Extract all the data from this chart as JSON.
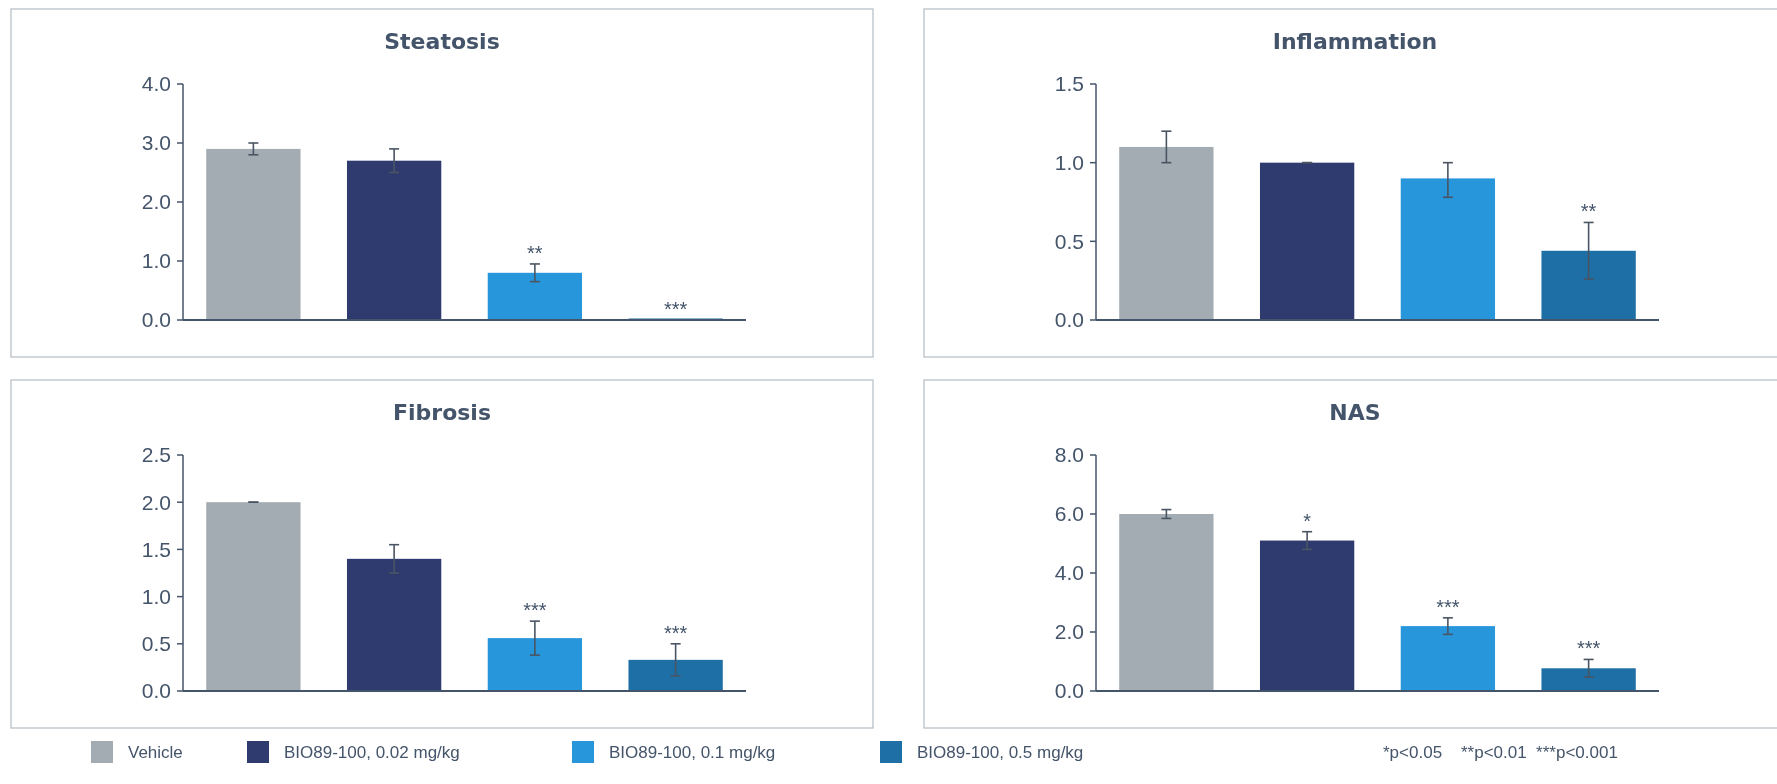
{
  "chart_data": [
    {
      "type": "bar",
      "title": "Steatosis",
      "categories": [
        null
      ],
      "ylim": [
        0,
        4
      ],
      "yticks": [
        {
          "value": 0,
          "label": "0.0"
        },
        {
          "value": 1,
          "label": "1.0"
        },
        {
          "value": 2,
          "label": "2.0"
        },
        {
          "value": 3,
          "label": "3.0"
        },
        {
          "value": 4,
          "label": "4.0"
        }
      ],
      "series": [
        {
          "color": "#a2acb2",
          "values": [
            2.9
          ],
          "errors": [
            0.1
          ],
          "value_labels": [
            null
          ]
        },
        {
          "color": "#2f3a6e",
          "values": [
            2.7
          ],
          "errors": [
            0.2
          ],
          "value_labels": [
            null
          ]
        },
        {
          "color": "#2896db",
          "values": [
            0.8
          ],
          "errors": [
            0.15
          ],
          "value_labels": [
            "**"
          ]
        },
        {
          "color": "#1d6fa5",
          "values": [
            0
          ],
          "errors": [
            null
          ],
          "value_labels": [
            "***"
          ]
        }
      ]
    },
    {
      "type": "bar",
      "title": "Inflammation",
      "categories": [
        null
      ],
      "ylim": [
        0,
        1.5
      ],
      "yticks": [
        {
          "value": 0,
          "label": "0.0"
        },
        {
          "value": 0.5,
          "label": "0.5"
        },
        {
          "value": 1,
          "label": "1.0"
        },
        {
          "value": 1.5,
          "label": "1.5"
        }
      ],
      "series": [
        {
          "color": "#a2acb2",
          "values": [
            1.1
          ],
          "errors": [
            0.1
          ],
          "value_labels": [
            null
          ]
        },
        {
          "color": "#2f3a6e",
          "values": [
            1.0
          ],
          "errors": [
            0
          ],
          "value_labels": [
            null
          ]
        },
        {
          "color": "#2896db",
          "values": [
            0.9
          ],
          "errors": [
            [
              0.78,
              1.0
            ]
          ],
          "value_labels": [
            null
          ]
        },
        {
          "color": "#1d6fa5",
          "values": [
            0.44
          ],
          "errors": [
            0.18
          ],
          "value_labels": [
            "**"
          ]
        }
      ]
    },
    {
      "type": "bar",
      "title": "Fibrosis",
      "categories": [
        null
      ],
      "ylim": [
        0,
        2.5
      ],
      "yticks": [
        {
          "value": 0,
          "label": "0.0"
        },
        {
          "value": 0.5,
          "label": "0.5"
        },
        {
          "value": 1,
          "label": "1.0"
        },
        {
          "value": 1.5,
          "label": "1.5"
        },
        {
          "value": 2,
          "label": "2.0"
        },
        {
          "value": 2.5,
          "label": "2.5"
        }
      ],
      "series": [
        {
          "color": "#a2acb2",
          "values": [
            2.0
          ],
          "errors": [
            0
          ],
          "value_labels": [
            null
          ]
        },
        {
          "color": "#2f3a6e",
          "values": [
            1.4
          ],
          "errors": [
            0.15
          ],
          "value_labels": [
            null
          ]
        },
        {
          "color": "#2896db",
          "values": [
            0.56
          ],
          "errors": [
            0.18
          ],
          "value_labels": [
            "***"
          ]
        },
        {
          "color": "#1d6fa5",
          "values": [
            0.33
          ],
          "errors": [
            0.17
          ],
          "value_labels": [
            "***"
          ]
        }
      ]
    },
    {
      "type": "bar",
      "title": "NAS",
      "categories": [
        null
      ],
      "ylim": [
        0,
        8
      ],
      "yticks": [
        {
          "value": 0,
          "label": "0.0"
        },
        {
          "value": 2,
          "label": "2.0"
        },
        {
          "value": 4,
          "label": "4.0"
        },
        {
          "value": 6,
          "label": "6.0"
        },
        {
          "value": 8,
          "label": "8.0"
        }
      ],
      "legend": "bottom",
      "annotations": [
        "*p<0.05    **p<0.01  ***p<0.001"
      ],
      "series": [
        {
          "name": "Vehicle",
          "color": "#a2acb2",
          "values": [
            6.0
          ],
          "errors": [
            0.15
          ],
          "value_labels": [
            null
          ]
        },
        {
          "name": "BIO89-100, 0.02 mg/kg",
          "color": "#2f3a6e",
          "values": [
            5.1
          ],
          "errors": [
            0.3
          ],
          "value_labels": [
            "*"
          ]
        },
        {
          "name": "BIO89-100, 0.1 mg/kg",
          "color": "#2896db",
          "values": [
            2.2
          ],
          "errors": [
            0.28
          ],
          "value_labels": [
            "***"
          ]
        },
        {
          "name": "BIO89-100, 0.5 mg/kg",
          "color": "#1d6fa5",
          "values": [
            0.77
          ],
          "errors": [
            0.3
          ],
          "value_labels": [
            "***"
          ]
        }
      ]
    }
  ]
}
